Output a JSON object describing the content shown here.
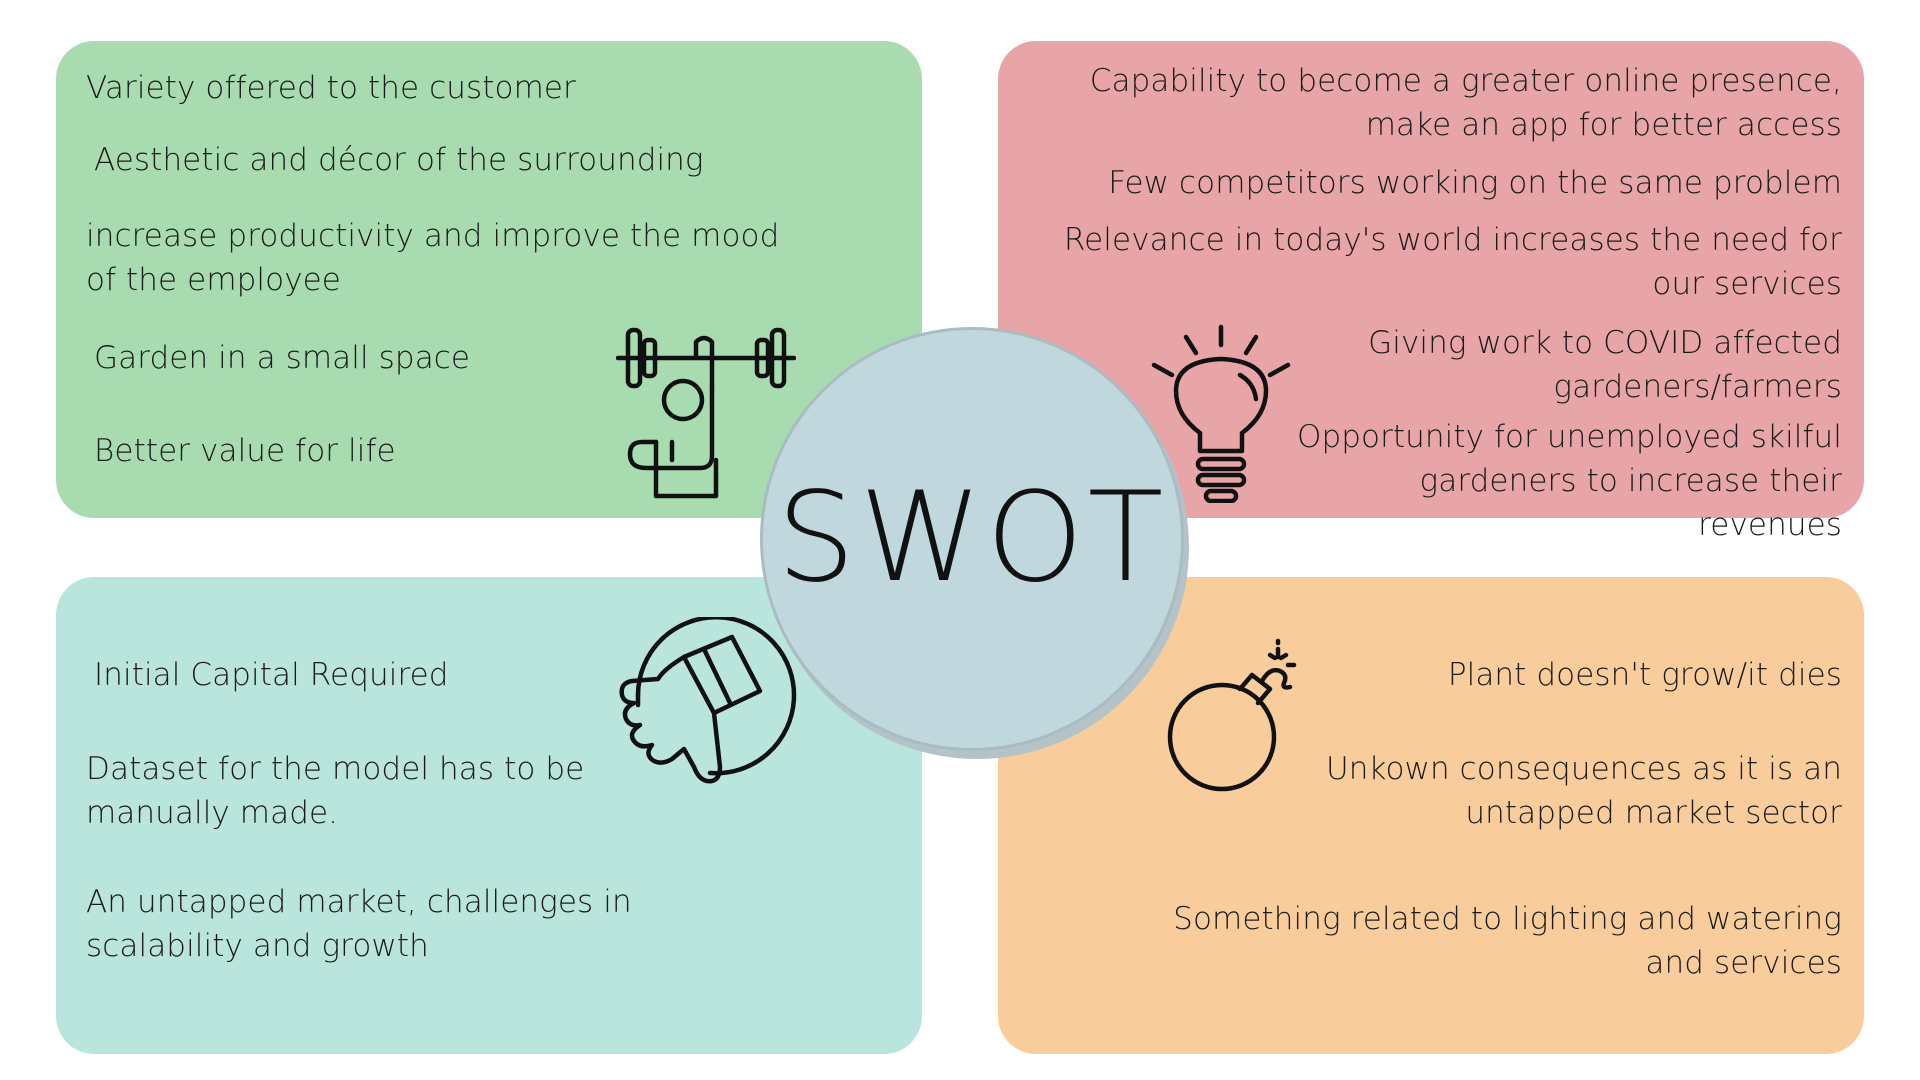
{
  "colors": {
    "strengths": "#a8dcb0",
    "opportunities": "#e8a5a7",
    "weaknesses": "#b9e5dc",
    "threats": "#f9cd9b",
    "center_fill": "#c0d7de",
    "center_border": "#a9bcc2",
    "center_shadow": "#b3c3c8"
  },
  "center": {
    "title": "SWOT"
  },
  "strengths": {
    "icon": "weightlifter-icon",
    "items": [
      "Variety offered to the customer",
      "Aesthetic and décor of the surrounding",
      "increase productivity and improve the mood of the employee",
      "Garden in a small space",
      "Better value for life"
    ]
  },
  "opportunities": {
    "icon": "lightbulb-icon",
    "items": [
      "Capability to become a greater online presence, make an app for better access",
      "Few competitors working on the same problem",
      "Relevance in today's world increases the need for our services",
      "Giving work to COVID affected gardeners/farmers",
      "Opportunity for unemployed skilful gardeners to increase their revenues"
    ]
  },
  "weaknesses": {
    "icon": "thumbs-down-icon",
    "items": [
      "Initial Capital Required",
      "Dataset for the model has to be manually made.",
      "An untapped market, challenges in scalability and growth"
    ]
  },
  "threats": {
    "icon": "bomb-icon",
    "items": [
      "Plant doesn't grow/it dies",
      "Unkown consequences as it is an untapped market sector",
      "Something related to lighting and watering and services"
    ]
  }
}
